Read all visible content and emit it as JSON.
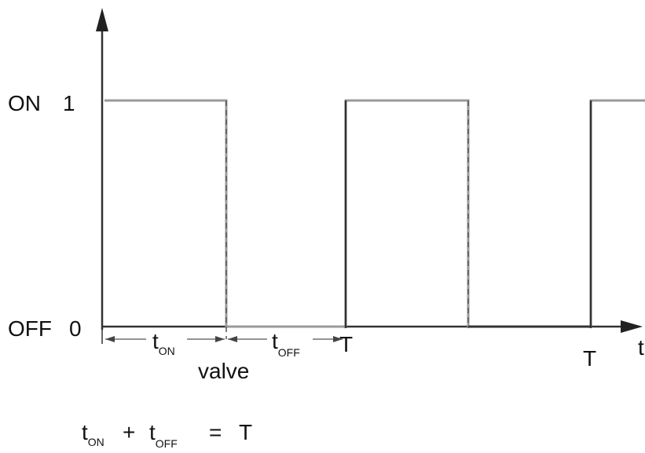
{
  "y_axis": {
    "on_label": "ON",
    "on_value": "1",
    "off_label": "OFF",
    "off_value": "0"
  },
  "x_axis": {
    "label": "t"
  },
  "signal": {
    "levels": [
      1,
      0,
      1,
      0,
      1
    ]
  },
  "annotations": {
    "t_on_main": "t",
    "t_on_sub": "ON",
    "t_off_main": "t",
    "t_off_sub": "OFF",
    "period_label_1": "T",
    "period_label_2": "T",
    "valve_label": "valve"
  },
  "formula": {
    "t1": "t",
    "t1_sub": "ON",
    "plus": "+",
    "t2": "t",
    "t2_sub": "OFF",
    "equals": "=",
    "result": "T"
  }
}
